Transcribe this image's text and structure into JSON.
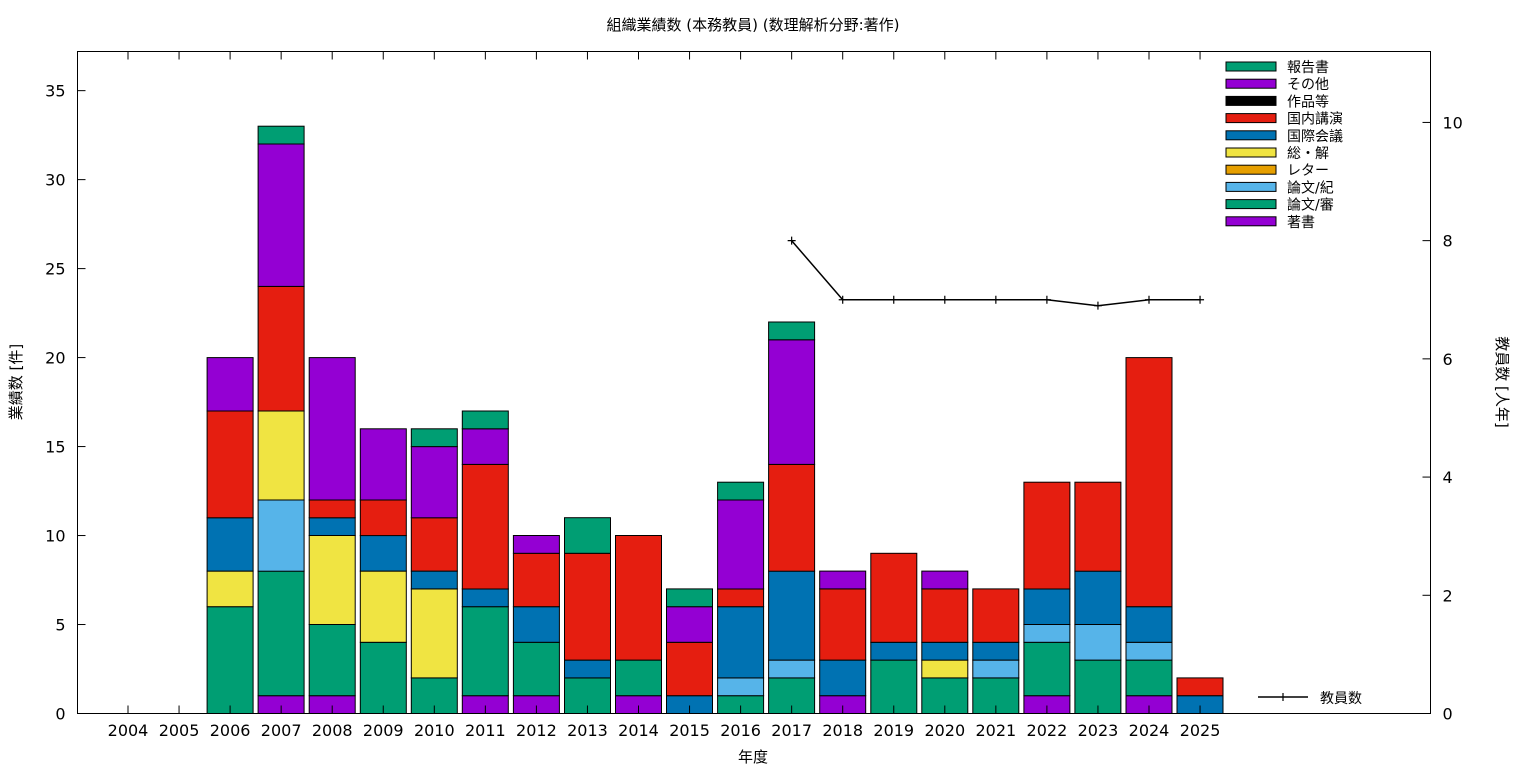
{
  "chart_data": {
    "type": "bar",
    "title": "組織業績数 (本務教員) (数理解析分野:著作)",
    "xlabel": "年度",
    "ylabel": "業績数 [件]",
    "y2label": "教員数 [人年]",
    "ylim": [
      0,
      37.2
    ],
    "y2lim": [
      0,
      11.2
    ],
    "yticks": [
      "0",
      "5",
      "10",
      "15",
      "20",
      "25",
      "30",
      "35"
    ],
    "y2ticks": [
      "0",
      "2",
      "4",
      "6",
      "8",
      "10"
    ],
    "stacked": true,
    "grid": false,
    "legend_position": "top-right",
    "categories": [
      "2004",
      "2005",
      "2006",
      "2007",
      "2008",
      "2009",
      "2010",
      "2011",
      "2012",
      "2013",
      "2014",
      "2015",
      "2016",
      "2017",
      "2018",
      "2019",
      "2020",
      "2021",
      "2022",
      "2023",
      "2024",
      "2025"
    ],
    "series": [
      {
        "name": "著書",
        "color": "#9400d3",
        "values": [
          0,
          0,
          0,
          1,
          1,
          0,
          0,
          1,
          1,
          0,
          1,
          0,
          0,
          0,
          1,
          0,
          0,
          0,
          1,
          0,
          1,
          0
        ]
      },
      {
        "name": "論文/審",
        "color": "#009e73",
        "values": [
          0,
          0,
          6,
          7,
          4,
          4,
          2,
          5,
          3,
          2,
          2,
          0,
          1,
          2,
          0,
          3,
          2,
          2,
          3,
          3,
          2,
          0
        ]
      },
      {
        "name": "論文/紀",
        "color": "#56b4e9",
        "values": [
          0,
          0,
          0,
          4,
          0,
          0,
          0,
          0,
          0,
          0,
          0,
          0,
          1,
          1,
          0,
          0,
          0,
          1,
          1,
          2,
          1,
          0
        ]
      },
      {
        "name": "レター",
        "color": "#e69f00",
        "values": [
          0,
          0,
          0,
          0,
          0,
          0,
          0,
          0,
          0,
          0,
          0,
          0,
          0,
          0,
          0,
          0,
          0,
          0,
          0,
          0,
          0,
          0
        ]
      },
      {
        "name": "総・解",
        "color": "#f0e442",
        "values": [
          0,
          0,
          2,
          5,
          5,
          4,
          5,
          0,
          0,
          0,
          0,
          0,
          0,
          0,
          0,
          0,
          1,
          0,
          0,
          0,
          0,
          0
        ]
      },
      {
        "name": "国際会議",
        "color": "#0072b2",
        "values": [
          0,
          0,
          3,
          0,
          1,
          2,
          1,
          1,
          2,
          1,
          0,
          1,
          4,
          5,
          2,
          1,
          1,
          1,
          2,
          3,
          2,
          1
        ]
      },
      {
        "name": "国内講演",
        "color": "#e51e10",
        "values": [
          0,
          0,
          6,
          7,
          1,
          2,
          3,
          7,
          3,
          6,
          7,
          3,
          1,
          6,
          4,
          5,
          3,
          3,
          6,
          5,
          14,
          1
        ]
      },
      {
        "name": "作品等",
        "color": "#000000",
        "values": [
          0,
          0,
          0,
          0,
          0,
          0,
          0,
          0,
          0,
          0,
          0,
          0,
          0,
          0,
          0,
          0,
          0,
          0,
          0,
          0,
          0,
          0
        ]
      },
      {
        "name": "その他",
        "color": "#9400d3",
        "values": [
          0,
          0,
          3,
          8,
          8,
          4,
          4,
          2,
          1,
          0,
          0,
          2,
          5,
          7,
          1,
          0,
          1,
          0,
          0,
          0,
          0,
          0
        ]
      },
      {
        "name": "報告書",
        "color": "#009e73",
        "values": [
          0,
          0,
          0,
          1,
          0,
          0,
          1,
          1,
          0,
          2,
          0,
          1,
          1,
          1,
          0,
          0,
          0,
          0,
          0,
          0,
          0,
          0
        ]
      }
    ],
    "line_series": {
      "name": "教員数",
      "axis": "y2",
      "x": [
        "2017",
        "2018",
        "2019",
        "2020",
        "2021",
        "2022",
        "2023",
        "2024",
        "2025"
      ],
      "values": [
        8,
        7,
        7,
        7,
        7,
        7,
        6.9,
        7,
        7
      ]
    }
  }
}
